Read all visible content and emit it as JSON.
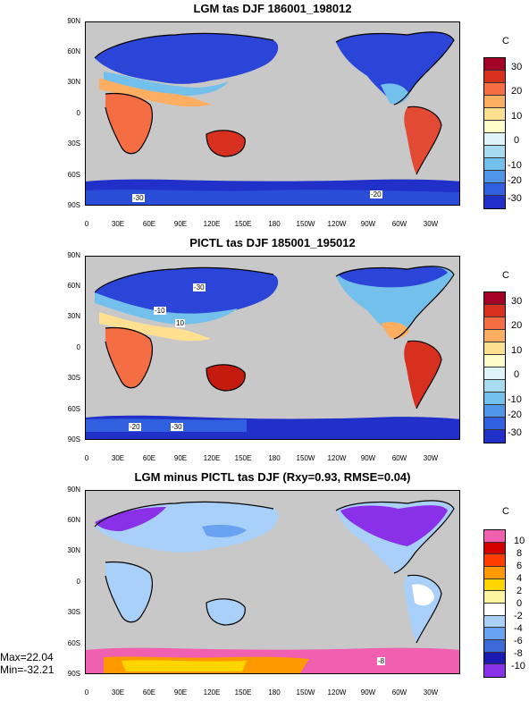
{
  "panels": [
    {
      "title": "LGM tas DJF 186001_198012",
      "colorbar_unit": "C",
      "colorbar_labels": [
        "30",
        "20",
        "10",
        "0",
        "-10",
        "-20",
        "-30"
      ],
      "colorbar_colors": [
        "#a50026",
        "#d7301f",
        "#f46d43",
        "#fdae61",
        "#fee090",
        "#ffffcc",
        "#e0f3f8",
        "#a6dbf0",
        "#74c0ec",
        "#4f96e8",
        "#3060e0",
        "#2030c8"
      ],
      "contour_labels": [
        "-30",
        "-20"
      ]
    },
    {
      "title": "PICTL tas DJF 185001_195012",
      "colorbar_unit": "C",
      "colorbar_labels": [
        "30",
        "20",
        "10",
        "0",
        "-10",
        "-20",
        "-30"
      ],
      "colorbar_colors": [
        "#a50026",
        "#d7301f",
        "#f46d43",
        "#fdae61",
        "#fee090",
        "#ffffcc",
        "#e0f3f8",
        "#a6dbf0",
        "#74c0ec",
        "#4f96e8",
        "#3060e0",
        "#2030c8"
      ],
      "contour_labels": [
        "-30",
        "10",
        "-10",
        "-20",
        "-30"
      ]
    },
    {
      "title": "LGM minus PICTL tas DJF (Rxy=0.93, RMSE=0.04)",
      "colorbar_unit": "C",
      "colorbar_labels": [
        "10",
        "8",
        "6",
        "4",
        "2",
        "0",
        "-2",
        "-4",
        "-6",
        "-8",
        "-10"
      ],
      "colorbar_colors": [
        "#f05fb0",
        "#d40000",
        "#ff3d00",
        "#ff9900",
        "#ffd500",
        "#fff5a0",
        "#ffffff",
        "#a8d0f8",
        "#6aa2f2",
        "#3c6ad8",
        "#1a1ab4",
        "#8a30e8"
      ],
      "contour_labels": [
        "-8"
      ]
    }
  ],
  "lat_labels": [
    "90N",
    "60N",
    "30N",
    "0",
    "30S",
    "60S",
    "90S"
  ],
  "lon_labels": [
    "0",
    "30E",
    "60E",
    "90E",
    "120E",
    "150E",
    "180",
    "150W",
    "120W",
    "90W",
    "60W",
    "30W"
  ],
  "stats": {
    "max": "Max=22.04",
    "min": "Min=-32.21"
  },
  "map_colors": {
    "ocean": "#c8c8c8",
    "coast": "#000000"
  }
}
